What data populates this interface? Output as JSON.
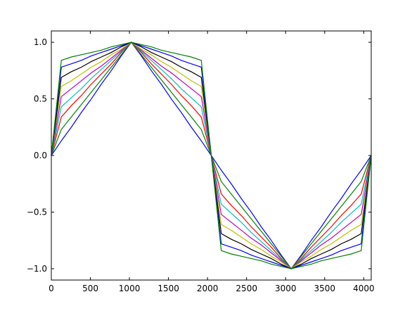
{
  "chart_data": {
    "type": "line",
    "x": [
      0,
      128,
      256,
      384,
      512,
      640,
      768,
      896,
      1024,
      1152,
      1280,
      1408,
      1536,
      1664,
      1792,
      1920,
      2048,
      2176,
      2304,
      2432,
      2560,
      2688,
      2816,
      2944,
      3072,
      3200,
      3328,
      3456,
      3584,
      3712,
      3840,
      3968,
      4096
    ],
    "series": [
      {
        "color": "#0000ff",
        "values": [
          0,
          0.13,
          0.25,
          0.38,
          0.5,
          0.63,
          0.75,
          0.88,
          1,
          0.88,
          0.75,
          0.63,
          0.5,
          0.38,
          0.25,
          0.13,
          0,
          -0.13,
          -0.25,
          -0.38,
          -0.5,
          -0.63,
          -0.75,
          -0.88,
          -1,
          -0.88,
          -0.75,
          -0.63,
          -0.5,
          -0.38,
          -0.25,
          -0.13,
          0
        ]
      },
      {
        "color": "#008000",
        "values": [
          0,
          0.23,
          0.34,
          0.45,
          0.56,
          0.67,
          0.78,
          0.89,
          1,
          0.89,
          0.78,
          0.67,
          0.56,
          0.45,
          0.34,
          0.23,
          0,
          -0.23,
          -0.34,
          -0.45,
          -0.56,
          -0.67,
          -0.78,
          -0.89,
          -1,
          -0.89,
          -0.78,
          -0.67,
          -0.56,
          -0.45,
          -0.34,
          -0.23,
          0
        ]
      },
      {
        "color": "#ff0000",
        "values": [
          0,
          0.34,
          0.44,
          0.53,
          0.63,
          0.72,
          0.81,
          0.91,
          1,
          0.91,
          0.81,
          0.72,
          0.63,
          0.53,
          0.44,
          0.34,
          0,
          -0.34,
          -0.44,
          -0.53,
          -0.63,
          -0.72,
          -0.81,
          -0.91,
          -1,
          -0.91,
          -0.81,
          -0.72,
          -0.63,
          -0.53,
          -0.44,
          -0.34,
          0
        ]
      },
      {
        "color": "#00bfbf",
        "values": [
          0,
          0.43,
          0.51,
          0.59,
          0.68,
          0.76,
          0.84,
          0.92,
          1,
          0.92,
          0.84,
          0.76,
          0.68,
          0.59,
          0.51,
          0.43,
          0,
          -0.43,
          -0.51,
          -0.59,
          -0.68,
          -0.76,
          -0.84,
          -0.92,
          -1,
          -0.92,
          -0.84,
          -0.76,
          -0.68,
          -0.59,
          -0.51,
          -0.43,
          0
        ]
      },
      {
        "color": "#bf00bf",
        "values": [
          0,
          0.52,
          0.59,
          0.66,
          0.73,
          0.79,
          0.86,
          0.93,
          1,
          0.93,
          0.86,
          0.79,
          0.73,
          0.66,
          0.59,
          0.52,
          0,
          -0.52,
          -0.59,
          -0.66,
          -0.73,
          -0.79,
          -0.86,
          -0.93,
          -1,
          -0.93,
          -0.86,
          -0.79,
          -0.73,
          -0.66,
          -0.59,
          -0.52,
          0
        ]
      },
      {
        "color": "#bfbf00",
        "values": [
          0,
          0.61,
          0.66,
          0.72,
          0.78,
          0.83,
          0.89,
          0.94,
          1,
          0.94,
          0.89,
          0.83,
          0.78,
          0.72,
          0.66,
          0.61,
          0,
          -0.61,
          -0.66,
          -0.72,
          -0.78,
          -0.83,
          -0.89,
          -0.94,
          -1,
          -0.94,
          -0.89,
          -0.83,
          -0.78,
          -0.72,
          -0.66,
          -0.61,
          0
        ]
      },
      {
        "color": "#000000",
        "values": [
          0,
          0.69,
          0.74,
          0.78,
          0.83,
          0.87,
          0.91,
          0.96,
          1,
          0.96,
          0.91,
          0.87,
          0.83,
          0.78,
          0.74,
          0.69,
          0,
          -0.69,
          -0.74,
          -0.78,
          -0.83,
          -0.87,
          -0.91,
          -0.96,
          -1,
          -0.96,
          -0.91,
          -0.87,
          -0.83,
          -0.78,
          -0.74,
          -0.69,
          0
        ]
      },
      {
        "color": "#0000ff",
        "values": [
          0,
          0.78,
          0.81,
          0.84,
          0.88,
          0.91,
          0.94,
          0.97,
          1,
          0.97,
          0.94,
          0.91,
          0.88,
          0.84,
          0.81,
          0.78,
          0,
          -0.78,
          -0.81,
          -0.84,
          -0.88,
          -0.91,
          -0.94,
          -0.97,
          -1,
          -0.97,
          -0.94,
          -0.91,
          -0.88,
          -0.84,
          -0.81,
          -0.78,
          0
        ]
      },
      {
        "color": "#008000",
        "values": [
          0,
          0.84,
          0.87,
          0.89,
          0.91,
          0.93,
          0.96,
          0.98,
          1,
          0.98,
          0.96,
          0.93,
          0.91,
          0.89,
          0.87,
          0.84,
          0,
          -0.84,
          -0.87,
          -0.89,
          -0.91,
          -0.93,
          -0.96,
          -0.98,
          -1,
          -0.98,
          -0.96,
          -0.93,
          -0.91,
          -0.89,
          -0.87,
          -0.84,
          0
        ]
      }
    ],
    "xlim": [
      0,
      4096
    ],
    "ylim": [
      -1.1,
      1.1
    ],
    "xticks": [
      0,
      500,
      1000,
      1500,
      2000,
      2500,
      3000,
      3500,
      4000
    ],
    "yticks": [
      {
        "value": -1,
        "label": "−1.0"
      },
      {
        "value": -0.5,
        "label": "−0.5"
      },
      {
        "value": 0,
        "label": "0.0"
      },
      0.5,
      {
        "value": 1,
        "label": "1.0"
      }
    ]
  }
}
